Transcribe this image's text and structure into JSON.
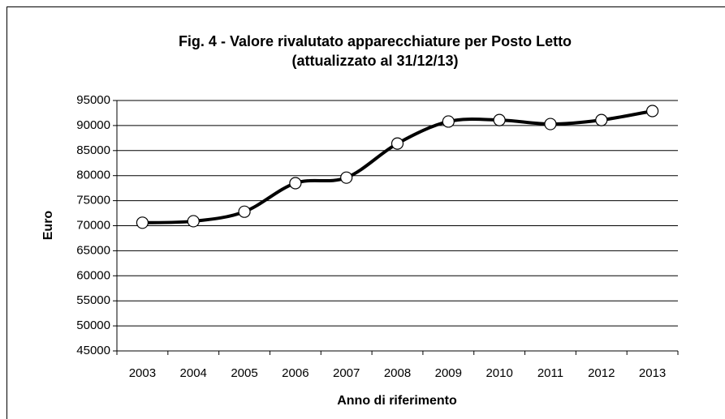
{
  "chart_data": {
    "type": "line",
    "title": [
      "Fig. 4 - Valore rivalutato apparecchiature per Posto Letto",
      "(attualizzato al 31/12/13)"
    ],
    "x_label": "Anno di riferimento",
    "y_label": "Euro",
    "categories": [
      "2003",
      "2004",
      "2005",
      "2006",
      "2007",
      "2008",
      "2009",
      "2010",
      "2011",
      "2012",
      "2013"
    ],
    "values": [
      70600,
      70900,
      72800,
      78500,
      79600,
      86400,
      90800,
      91100,
      90300,
      91100,
      92900
    ],
    "color": "#000000",
    "marker_fill": "#ffffff",
    "smooth": true,
    "ylim": [
      45000,
      95000
    ],
    "yticks": [
      45000,
      50000,
      55000,
      60000,
      65000,
      70000,
      75000,
      80000,
      85000,
      90000,
      95000
    ],
    "grid": true
  }
}
